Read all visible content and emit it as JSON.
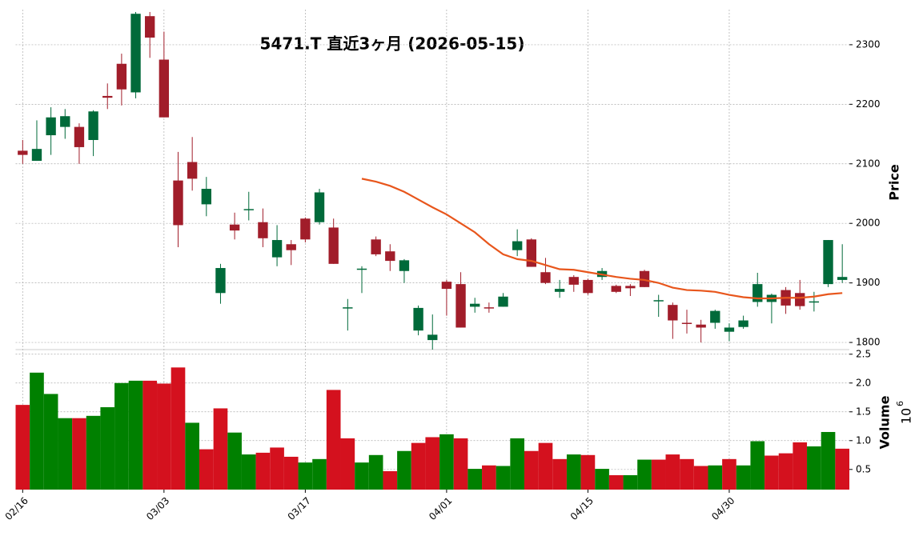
{
  "chart_data": {
    "type": "candlestick",
    "title": "5471.T 直近3ヶ月 (2026-05-15)",
    "ylabel": "Price",
    "grid": true,
    "up_color": "#006a3a",
    "down_color": "#a11d2a",
    "categories": [
      "02/16",
      null,
      null,
      null,
      null,
      null,
      null,
      null,
      null,
      null,
      "03/03",
      null,
      null,
      null,
      null,
      null,
      null,
      null,
      null,
      null,
      "03/17",
      null,
      null,
      null,
      null,
      null,
      null,
      null,
      null,
      null,
      "04/01",
      null,
      null,
      null,
      null,
      null,
      null,
      null,
      null,
      null,
      "04/15",
      null,
      null,
      null,
      null,
      null,
      null,
      null,
      null,
      null,
      "04/30",
      null,
      null,
      null,
      null,
      null,
      null,
      null,
      null
    ],
    "open": [
      2122,
      2105,
      2148,
      2162,
      2162,
      2140,
      2214,
      2268,
      2220,
      2348,
      2275,
      2072,
      2103,
      2032,
      1883,
      1998,
      2022,
      2002,
      1943,
      1965,
      2008,
      2002,
      1993,
      1857,
      1922,
      1973,
      1953,
      1920,
      1820,
      1804,
      1902,
      1898,
      1860,
      1859,
      1860,
      1955,
      1973,
      1918,
      1885,
      1910,
      1905,
      1910,
      1895,
      1895,
      1920,
      1869,
      1863,
      1833,
      1830,
      1833,
      1818,
      1826,
      1868,
      1868,
      1888,
      1883,
      1867,
      1898,
      1905
    ],
    "high": [
      2140,
      2173,
      2195,
      2192,
      2168,
      2190,
      2235,
      2285,
      2355,
      2355,
      2322,
      2120,
      2145,
      2078,
      1932,
      2018,
      2053,
      2025,
      1997,
      1972,
      2010,
      2058,
      2008,
      1873,
      1928,
      1978,
      1965,
      1940,
      1862,
      1847,
      1905,
      1918,
      1875,
      1867,
      1883,
      1990,
      1975,
      1942,
      1905,
      1913,
      1907,
      1925,
      1897,
      1898,
      1922,
      1880,
      1867,
      1855,
      1838,
      1855,
      1832,
      1845,
      1917,
      1882,
      1893,
      1905,
      1885,
      1972,
      1965
    ],
    "low": [
      2100,
      2105,
      2115,
      2142,
      2100,
      2113,
      2192,
      2198,
      2210,
      2278,
      2178,
      1960,
      2055,
      2012,
      1865,
      1973,
      2005,
      1960,
      1928,
      1930,
      1968,
      1998,
      1932,
      1820,
      1883,
      1945,
      1920,
      1900,
      1812,
      1788,
      1845,
      1825,
      1850,
      1850,
      1860,
      1945,
      1927,
      1898,
      1875,
      1885,
      1880,
      1905,
      1883,
      1878,
      1893,
      1843,
      1806,
      1815,
      1800,
      1823,
      1802,
      1823,
      1860,
      1832,
      1848,
      1855,
      1852,
      1893,
      1900
    ],
    "close": [
      2115,
      2125,
      2178,
      2180,
      2128,
      2188,
      2211,
      2225,
      2352,
      2312,
      2178,
      1997,
      2075,
      2058,
      1925,
      1988,
      2024,
      1975,
      1972,
      1955,
      1973,
      2052,
      1932,
      1859,
      1924,
      1948,
      1937,
      1938,
      1858,
      1813,
      1890,
      1825,
      1865,
      1857,
      1877,
      1970,
      1927,
      1900,
      1890,
      1897,
      1883,
      1920,
      1885,
      1891,
      1893,
      1871,
      1837,
      1831,
      1825,
      1853,
      1825,
      1837,
      1898,
      1880,
      1862,
      1861,
      1869,
      1972,
      1910
    ],
    "ylim": [
      1788,
      2359
    ],
    "yticks": [
      1800,
      1900,
      2000,
      2100,
      2200,
      2300
    ],
    "ma": {
      "color": "#e8561c",
      "values": [
        null,
        null,
        null,
        null,
        null,
        null,
        null,
        null,
        null,
        null,
        null,
        null,
        null,
        null,
        null,
        null,
        null,
        null,
        null,
        null,
        null,
        null,
        null,
        null,
        2075,
        2070,
        2063,
        2053,
        2040,
        2027,
        2015,
        2000,
        1985,
        1965,
        1948,
        1940,
        1937,
        1930,
        1923,
        1922,
        1918,
        1914,
        1910,
        1907,
        1905,
        1900,
        1892,
        1888,
        1887,
        1885,
        1880,
        1876,
        1874,
        1874,
        1875,
        1875,
        1877,
        1881,
        1883
      ]
    },
    "volume": {
      "ylabel": "Volume",
      "scale": {
        "base": "10",
        "exponent": "6"
      },
      "up_color": "#008000",
      "down_color": "#d4111e",
      "values": [
        1.62,
        2.18,
        1.81,
        1.39,
        1.39,
        1.43,
        1.58,
        2.0,
        2.04,
        2.04,
        1.99,
        2.27,
        1.31,
        0.85,
        1.56,
        1.14,
        0.76,
        0.79,
        0.88,
        0.72,
        0.62,
        0.68,
        1.88,
        1.04,
        0.62,
        0.75,
        0.47,
        0.82,
        0.96,
        1.06,
        1.11,
        1.04,
        0.51,
        0.57,
        0.56,
        1.04,
        0.82,
        0.96,
        0.68,
        0.76,
        0.75,
        0.51,
        0.4,
        0.4,
        0.67,
        0.67,
        0.76,
        0.68,
        0.56,
        0.57,
        0.68,
        0.57,
        0.99,
        0.74,
        0.78,
        0.97,
        0.9,
        1.15,
        0.86
      ],
      "ylim": [
        0.15,
        2.58
      ],
      "yticks": [
        0.5,
        {
          "value": 1.0,
          "label": "1.0"
        },
        1.5,
        {
          "value": 2.0,
          "label": "2.0"
        },
        2.5
      ]
    }
  }
}
